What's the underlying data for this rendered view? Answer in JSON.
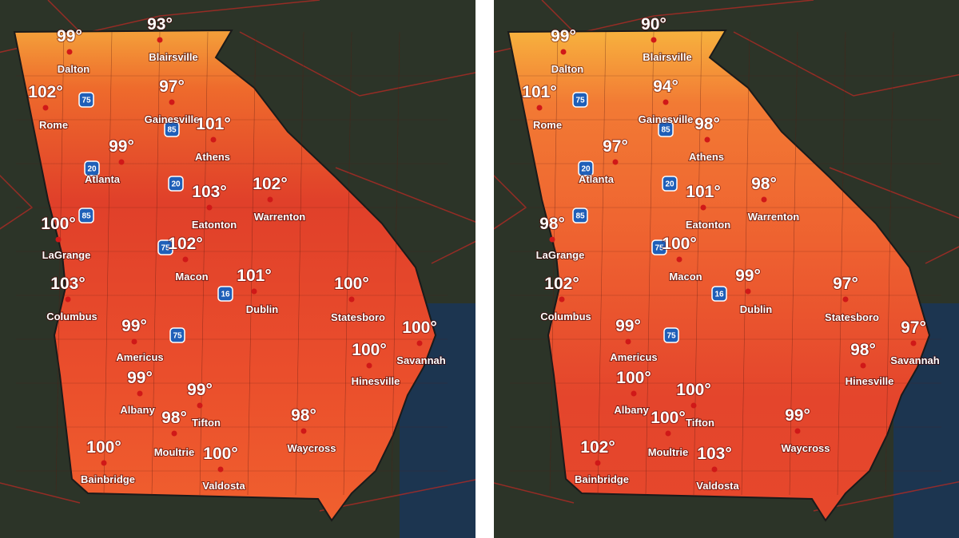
{
  "panels": [
    {
      "items": [
        {
          "temp": "93°",
          "city": "Blairsville"
        },
        {
          "temp": "99°",
          "city": "Dalton"
        },
        {
          "temp": "102°",
          "city": "Rome"
        },
        {
          "temp": "97°",
          "city": "Gainesville"
        },
        {
          "temp": "101°",
          "city": "Athens"
        },
        {
          "temp": "99°",
          "city": "Atlanta"
        },
        {
          "temp": "103°",
          "city": "Eatonton"
        },
        {
          "temp": "102°",
          "city": "Warrenton"
        },
        {
          "temp": "100°",
          "city": "LaGrange"
        },
        {
          "temp": "102°",
          "city": "Macon"
        },
        {
          "temp": "101°",
          "city": "Dublin"
        },
        {
          "temp": "103°",
          "city": "Columbus"
        },
        {
          "temp": "100°",
          "city": "Statesboro"
        },
        {
          "temp": "100°",
          "city": "Savannah"
        },
        {
          "temp": "99°",
          "city": "Americus"
        },
        {
          "temp": "100°",
          "city": "Hinesville"
        },
        {
          "temp": "99°",
          "city": "Albany"
        },
        {
          "temp": "99°",
          "city": "Tifton"
        },
        {
          "temp": "98°",
          "city": "Moultrie"
        },
        {
          "temp": "98°",
          "city": "Waycross"
        },
        {
          "temp": "100°",
          "city": "Bainbridge"
        },
        {
          "temp": "100°",
          "city": "Valdosta"
        }
      ],
      "shields": [
        "75",
        "85",
        "20",
        "20",
        "85",
        "75",
        "16",
        "75"
      ]
    },
    {
      "items": [
        {
          "temp": "90°",
          "city": "Blairsville"
        },
        {
          "temp": "99°",
          "city": "Dalton"
        },
        {
          "temp": "101°",
          "city": "Rome"
        },
        {
          "temp": "94°",
          "city": "Gainesville"
        },
        {
          "temp": "98°",
          "city": "Athens"
        },
        {
          "temp": "97°",
          "city": "Atlanta"
        },
        {
          "temp": "101°",
          "city": "Eatonton"
        },
        {
          "temp": "98°",
          "city": "Warrenton"
        },
        {
          "temp": "98°",
          "city": "LaGrange"
        },
        {
          "temp": "100°",
          "city": "Macon"
        },
        {
          "temp": "99°",
          "city": "Dublin"
        },
        {
          "temp": "102°",
          "city": "Columbus"
        },
        {
          "temp": "97°",
          "city": "Statesboro"
        },
        {
          "temp": "97°",
          "city": "Savannah"
        },
        {
          "temp": "99°",
          "city": "Americus"
        },
        {
          "temp": "98°",
          "city": "Hinesville"
        },
        {
          "temp": "100°",
          "city": "Albany"
        },
        {
          "temp": "100°",
          "city": "Tifton"
        },
        {
          "temp": "100°",
          "city": "Moultrie"
        },
        {
          "temp": "99°",
          "city": "Waycross"
        },
        {
          "temp": "102°",
          "city": "Bainbridge"
        },
        {
          "temp": "103°",
          "city": "Valdosta"
        }
      ],
      "shields": [
        "75",
        "85",
        "20",
        "20",
        "85",
        "75",
        "16",
        "75"
      ]
    }
  ]
}
